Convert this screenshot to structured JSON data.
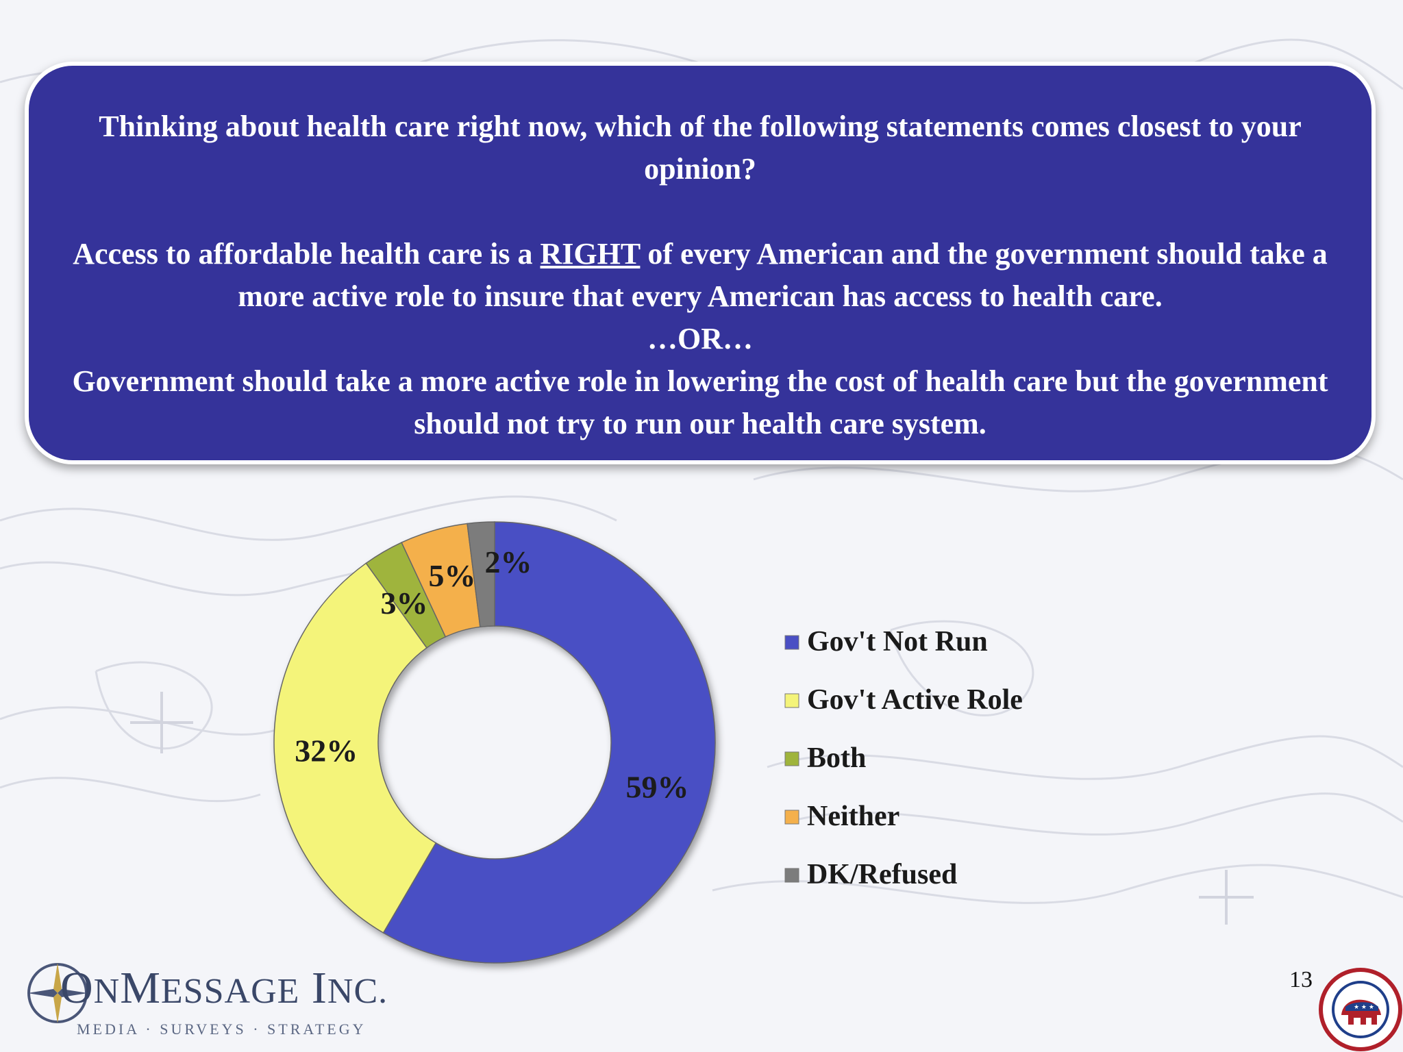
{
  "question": {
    "line1": "Thinking about health care right now, which of the following statements comes closest to your opinion?",
    "statement1_pre": "Access to affordable health care is a ",
    "statement1_em": "RIGHT",
    "statement1_post": " of every American and the government should take a more active role to insure that every American has access to health care.",
    "or_text": "…OR…",
    "statement2": "Government should take a more active role in lowering the cost of health care but the government should not try to run our health care system."
  },
  "chart_data": {
    "type": "pie",
    "donut": true,
    "title": "",
    "categories": [
      "Gov't Not Run",
      "Gov't Active Role",
      "Both",
      "Neither",
      "DK/Refused"
    ],
    "values": [
      59,
      32,
      3,
      5,
      2
    ],
    "labels": [
      "59%",
      "32%",
      "3%",
      "5%",
      "2%"
    ],
    "colors": [
      "#4a4fc4",
      "#f4f47a",
      "#9fb43c",
      "#f4b04c",
      "#7c7c7c"
    ],
    "legend_position": "right"
  },
  "footer": {
    "logo_first": "O",
    "logo_mid": "N",
    "logo_message_cap": "M",
    "logo_message_rest": "ESSAGE",
    "logo_inc_cap": "I",
    "logo_inc_rest": "NC.",
    "tagline": "MEDIA · SURVEYS · STRATEGY",
    "page_number": "13",
    "seal_text": "REPUBLICAN NATIONAL COMMITTEE"
  }
}
